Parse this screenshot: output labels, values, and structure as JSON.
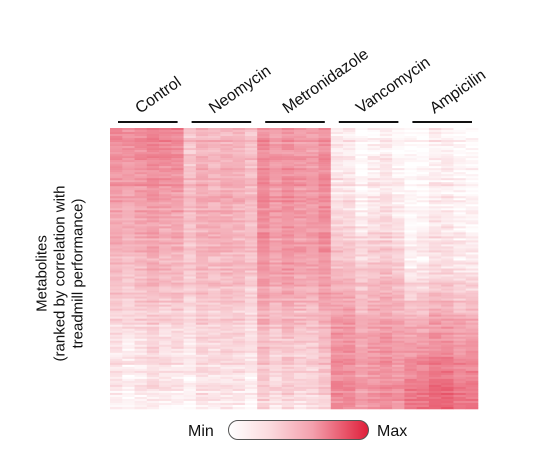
{
  "chart_data": {
    "type": "heatmap",
    "title": "",
    "ylabel": [
      "Metabolites",
      "(ranked by correlation with",
      "treadmill performance)"
    ],
    "xlabel": "",
    "categories": [
      "Control",
      "Neomycin",
      "Metronidazole",
      "Vancomycin",
      "Ampicilin"
    ],
    "samples_per_group": 6,
    "colorbar": {
      "min_label": "Min",
      "max_label": "Max",
      "colors": [
        "#ffffff",
        "#e01f3a"
      ]
    },
    "group_profiles": [
      {
        "group": "Control",
        "rank_fraction": [
          0.0,
          0.25,
          0.5,
          0.75,
          1.0
        ],
        "intensity": [
          0.55,
          0.42,
          0.3,
          0.14,
          0.06
        ]
      },
      {
        "group": "Neomycin",
        "rank_fraction": [
          0.0,
          0.25,
          0.5,
          0.75,
          1.0
        ],
        "intensity": [
          0.3,
          0.34,
          0.28,
          0.16,
          0.08
        ]
      },
      {
        "group": "Metronidazole",
        "rank_fraction": [
          0.0,
          0.25,
          0.5,
          0.75,
          1.0
        ],
        "intensity": [
          0.48,
          0.5,
          0.44,
          0.28,
          0.18
        ]
      },
      {
        "group": "Vancomycin",
        "rank_fraction": [
          0.0,
          0.25,
          0.5,
          0.75,
          1.0
        ],
        "intensity": [
          0.06,
          0.1,
          0.26,
          0.45,
          0.5
        ]
      },
      {
        "group": "Ampicilin",
        "rank_fraction": [
          0.0,
          0.25,
          0.5,
          0.75,
          1.0
        ],
        "intensity": [
          0.04,
          0.05,
          0.12,
          0.45,
          0.68
        ]
      }
    ]
  }
}
